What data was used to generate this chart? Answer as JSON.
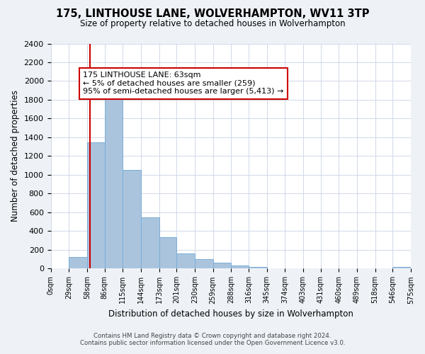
{
  "title": "175, LINTHOUSE LANE, WOLVERHAMPTON, WV11 3TP",
  "subtitle": "Size of property relative to detached houses in Wolverhampton",
  "xlabel": "Distribution of detached houses by size in Wolverhampton",
  "ylabel": "Number of detached properties",
  "bar_edges": [
    0,
    29,
    58,
    86,
    115,
    144,
    173,
    201,
    230,
    259,
    288,
    316,
    345,
    374,
    403,
    431,
    460,
    489,
    518,
    546,
    575
  ],
  "bar_heights": [
    0,
    125,
    1350,
    1880,
    1050,
    550,
    335,
    160,
    105,
    60,
    30,
    20,
    5,
    0,
    0,
    0,
    0,
    0,
    0,
    20
  ],
  "bar_color": "#aac4de",
  "bar_edge_color": "#7aaed6",
  "vline_x": 63,
  "vline_color": "#cc0000",
  "ylim": [
    0,
    2400
  ],
  "yticks": [
    0,
    200,
    400,
    600,
    800,
    1000,
    1200,
    1400,
    1600,
    1800,
    2000,
    2200,
    2400
  ],
  "xtick_labels": [
    "0sqm",
    "29sqm",
    "58sqm",
    "86sqm",
    "115sqm",
    "144sqm",
    "173sqm",
    "201sqm",
    "230sqm",
    "259sqm",
    "288sqm",
    "316sqm",
    "345sqm",
    "374sqm",
    "403sqm",
    "431sqm",
    "460sqm",
    "489sqm",
    "518sqm",
    "546sqm",
    "575sqm"
  ],
  "annotation_title": "175 LINTHOUSE LANE: 63sqm",
  "annotation_line1": "← 5% of detached houses are smaller (259)",
  "annotation_line2": "95% of semi-detached houses are larger (5,413) →",
  "footer1": "Contains HM Land Registry data © Crown copyright and database right 2024.",
  "footer2": "Contains public sector information licensed under the Open Government Licence v3.0.",
  "bg_color": "#eef2f7",
  "plot_bg_color": "#ffffff",
  "grid_color": "#d0d8e8"
}
